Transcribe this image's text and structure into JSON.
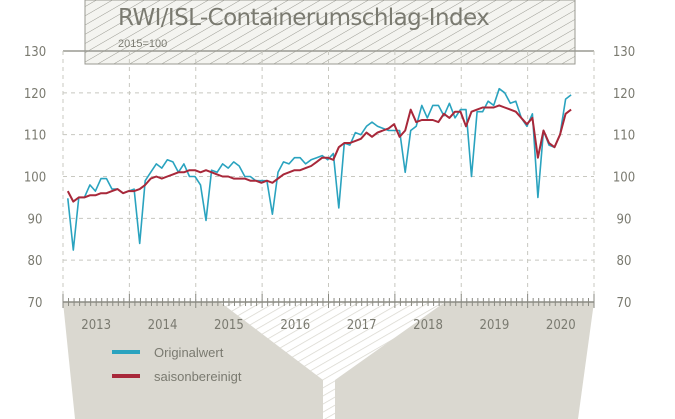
{
  "chart_data": {
    "type": "line",
    "title": "RWI/ISL-Containerumschlag-Index",
    "subtitle": "2015=100",
    "ylim": [
      70,
      130
    ],
    "yticks": [
      70,
      80,
      90,
      100,
      110,
      120,
      130
    ],
    "xlabels": [
      "2013",
      "2014",
      "2015",
      "2016",
      "2017",
      "2018",
      "2019",
      "2020"
    ],
    "x_start": "2013-01",
    "frequency": "monthly",
    "grid": true,
    "legend": "bottom-left",
    "series": [
      {
        "name": "Originalwert",
        "color": "#2aa3bf",
        "values": [
          94.8,
          82.4,
          95,
          95,
          98,
          96.5,
          99.5,
          99.5,
          97,
          97,
          96,
          96.5,
          97,
          84,
          99,
          101,
          103,
          102,
          104,
          103.5,
          101,
          103,
          100,
          100,
          98,
          89.5,
          101.5,
          101,
          103,
          102,
          103.5,
          102.5,
          100,
          100,
          99,
          99,
          99,
          91,
          101,
          103.5,
          103,
          104.5,
          104.5,
          103,
          104,
          104.5,
          105,
          104,
          105.5,
          92.5,
          108,
          107.5,
          110.5,
          110,
          112,
          113,
          112,
          111.5,
          111,
          111,
          111,
          101,
          111,
          112,
          117,
          114,
          117,
          117,
          114.5,
          117.5,
          114,
          116,
          116,
          100,
          115.5,
          115.5,
          118,
          117,
          121,
          120,
          117.5,
          118,
          114,
          112,
          115,
          95,
          111,
          107.5,
          107,
          110,
          118.5,
          119.5
        ]
      },
      {
        "name": "saisonbereinigt",
        "color": "#a8283a",
        "values": [
          96.5,
          94,
          95,
          95,
          95.5,
          95.5,
          96,
          96,
          96.5,
          97,
          96,
          96.5,
          96.5,
          97,
          98,
          99.5,
          100,
          99.5,
          100,
          100.5,
          101,
          101,
          101.5,
          101.5,
          101,
          101.5,
          101,
          100.5,
          100,
          100,
          99.5,
          99.5,
          99.5,
          99,
          99,
          98.5,
          99,
          98.5,
          99.5,
          100.5,
          101,
          101.5,
          101.5,
          102,
          102.5,
          103.5,
          104.5,
          104.5,
          104,
          107,
          108,
          108,
          108.5,
          109,
          110.5,
          109.5,
          110.5,
          111,
          111.5,
          112.5,
          109.5,
          111,
          116,
          113,
          113.5,
          113.5,
          113.5,
          113,
          115,
          114,
          115.5,
          115.5,
          112,
          115.5,
          116,
          116.5,
          116.5,
          116.5,
          117,
          116.5,
          116,
          115.5,
          114,
          112.5,
          114,
          104.5,
          111,
          108,
          107,
          110,
          115,
          116
        ]
      }
    ]
  }
}
